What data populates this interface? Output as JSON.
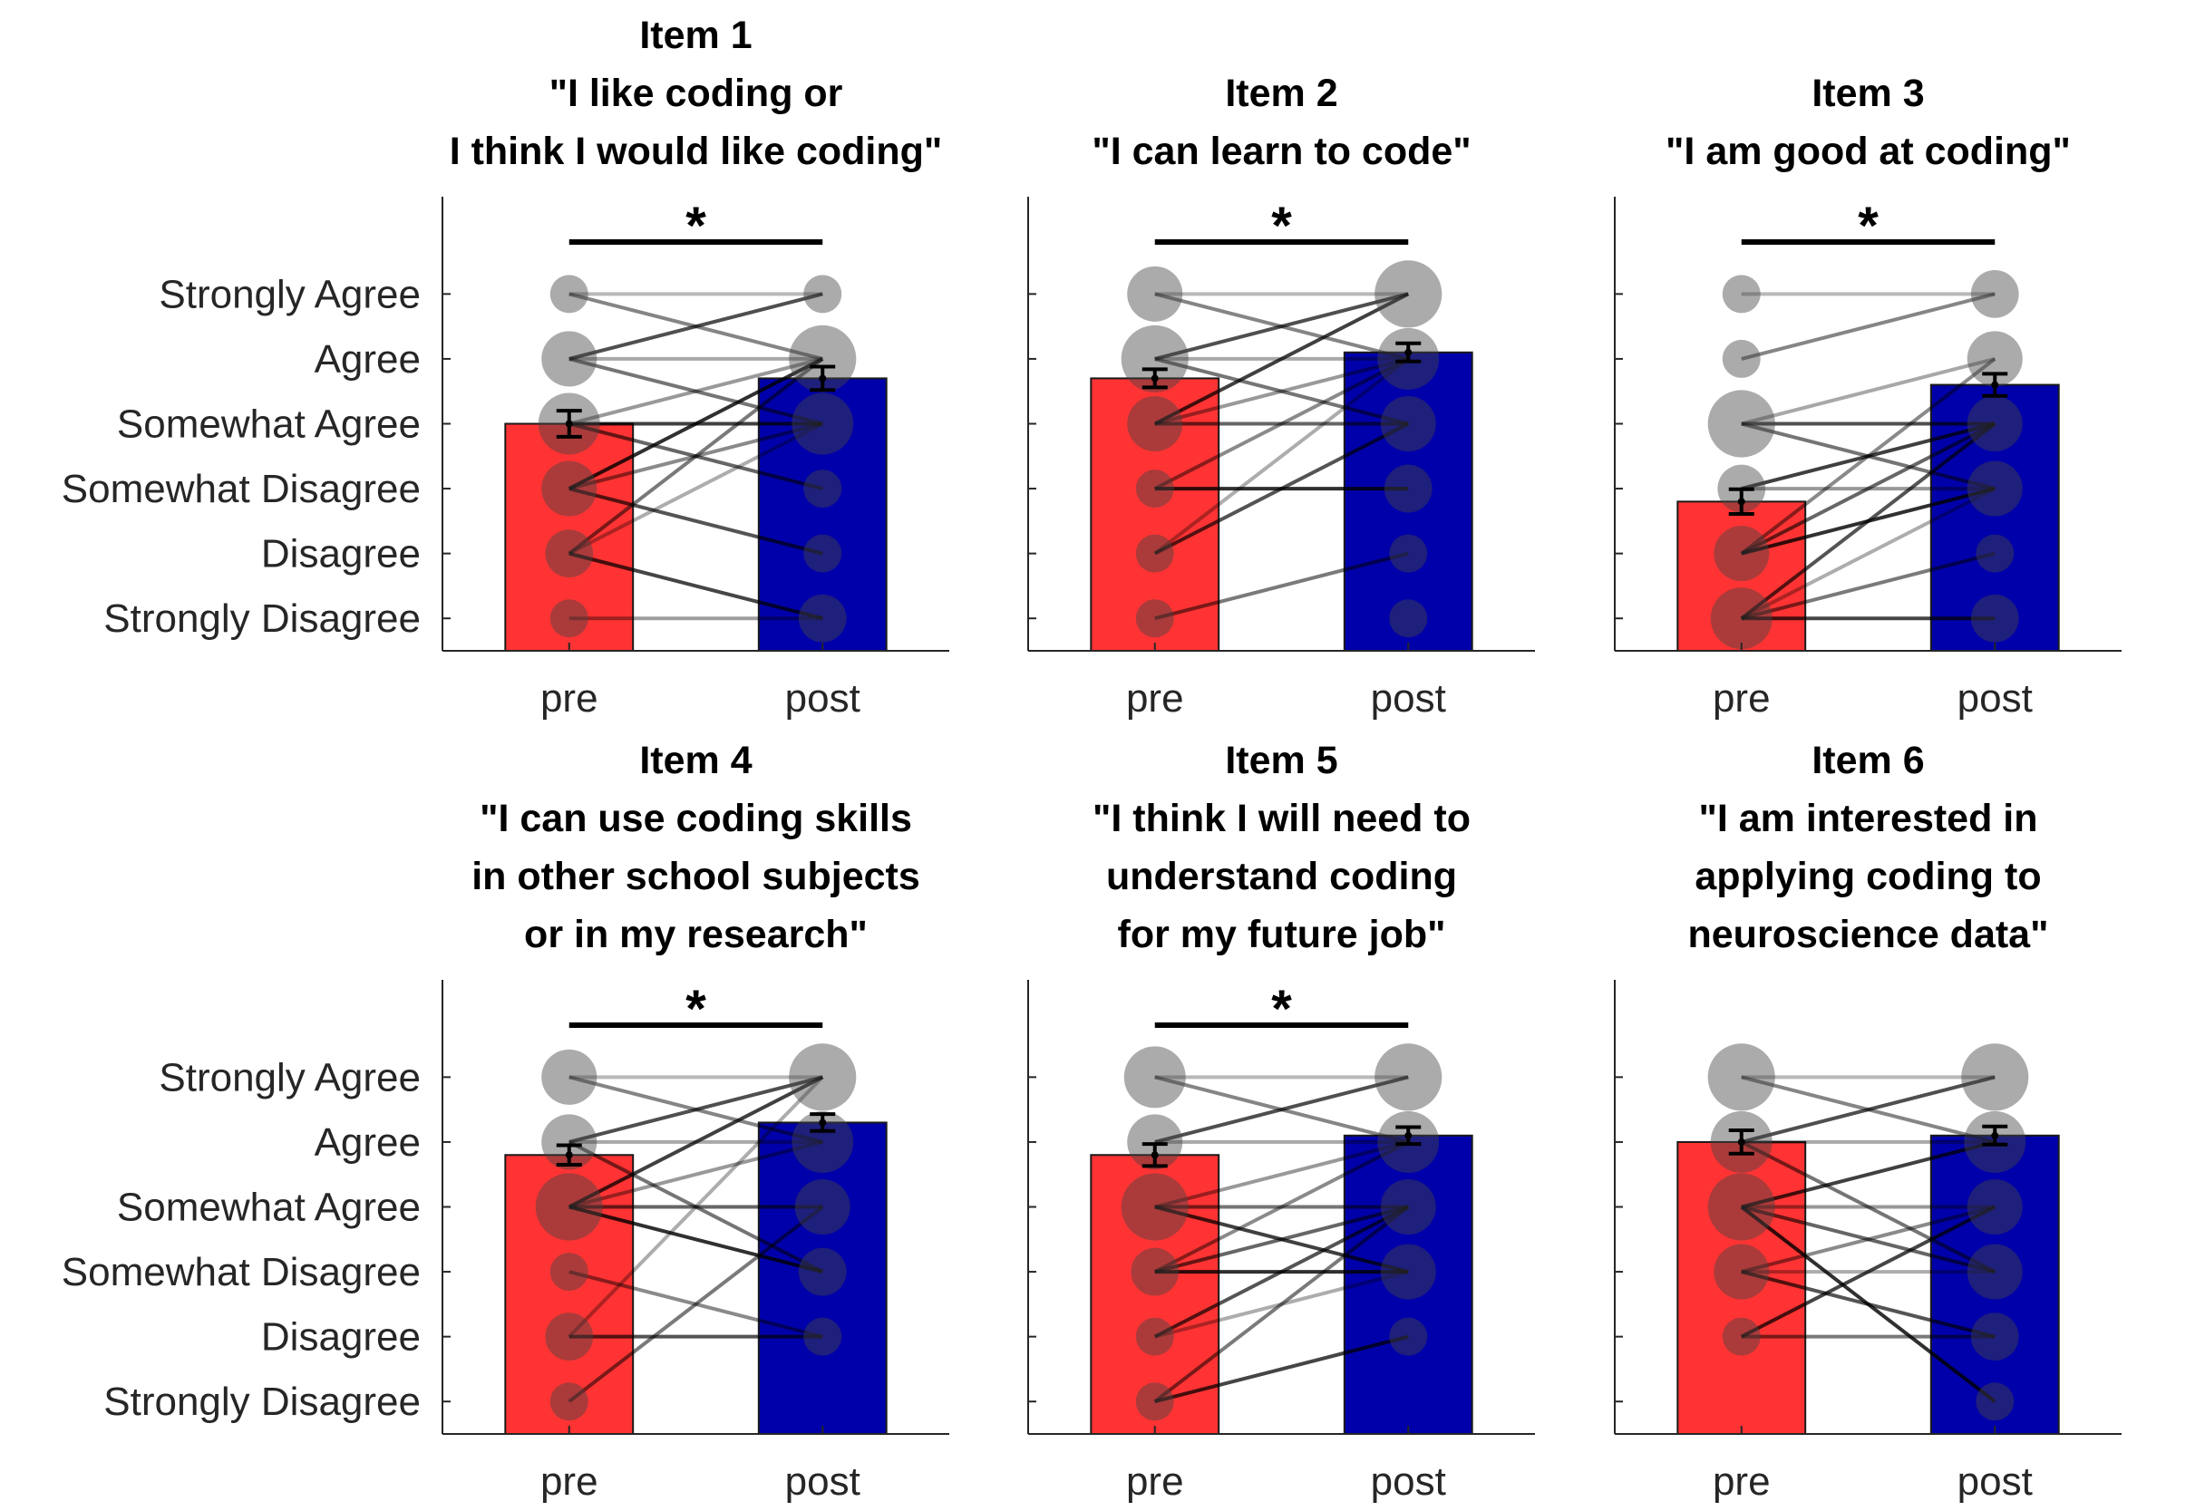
{
  "chart_data": [
    {
      "type": "bar",
      "title": [
        "Item 1",
        "\"I like coding or",
        "I think I would like coding\""
      ],
      "categories": [
        "pre",
        "post"
      ],
      "ytick_labels": [
        "Strongly Disagree",
        "Disagree",
        "Somewhat Disagree",
        "Somewhat Agree",
        "Agree",
        "Strongly Agree"
      ],
      "ylim": [
        0.5,
        7.5
      ],
      "means": [
        4.0,
        4.7
      ],
      "errors": [
        0.2,
        0.18
      ],
      "significance": "*",
      "pre_counts": [
        1,
        2,
        3,
        4,
        3,
        1
      ],
      "post_counts": [
        2,
        1,
        1,
        4,
        5,
        1
      ],
      "pairs": [
        [
          6,
          6
        ],
        [
          6,
          5
        ],
        [
          5,
          6
        ],
        [
          5,
          5
        ],
        [
          5,
          4
        ],
        [
          4,
          4
        ],
        [
          4,
          5
        ],
        [
          4,
          3
        ],
        [
          3,
          5
        ],
        [
          3,
          4
        ],
        [
          3,
          2
        ],
        [
          2,
          4
        ],
        [
          2,
          5
        ],
        [
          2,
          1
        ],
        [
          1,
          1
        ]
      ],
      "colors": {
        "pre": "#ff3333",
        "post": "#0000aa"
      }
    },
    {
      "type": "bar",
      "title": [
        "Item 2",
        "\"I can learn to code\""
      ],
      "categories": [
        "pre",
        "post"
      ],
      "ytick_labels": [
        "Strongly Disagree",
        "Disagree",
        "Somewhat Disagree",
        "Somewhat Agree",
        "Agree",
        "Strongly Agree"
      ],
      "ylim": [
        0.5,
        7.5
      ],
      "means": [
        4.7,
        5.1
      ],
      "errors": [
        0.14,
        0.14
      ],
      "significance": "*",
      "pre_counts": [
        1,
        1,
        1,
        3,
        5,
        3
      ],
      "post_counts": [
        1,
        1,
        2,
        3,
        4,
        5
      ],
      "pairs": [
        [
          6,
          6
        ],
        [
          6,
          5
        ],
        [
          5,
          6
        ],
        [
          5,
          5
        ],
        [
          5,
          4
        ],
        [
          4,
          6
        ],
        [
          4,
          5
        ],
        [
          4,
          4
        ],
        [
          3,
          3
        ],
        [
          3,
          5
        ],
        [
          2,
          4
        ],
        [
          2,
          5
        ],
        [
          1,
          2
        ]
      ],
      "colors": {
        "pre": "#ff3333",
        "post": "#0000aa"
      }
    },
    {
      "type": "bar",
      "title": [
        "Item 3",
        "\"I am good at coding\""
      ],
      "categories": [
        "pre",
        "post"
      ],
      "ytick_labels": [
        "Strongly Disagree",
        "Disagree",
        "Somewhat Disagree",
        "Somewhat Agree",
        "Agree",
        "Strongly Agree"
      ],
      "ylim": [
        0.5,
        7.5
      ],
      "means": [
        2.8,
        4.6
      ],
      "errors": [
        0.19,
        0.17
      ],
      "significance": "*",
      "pre_counts": [
        4,
        3,
        2,
        5,
        1,
        1
      ],
      "post_counts": [
        2,
        1,
        3,
        3,
        3,
        2
      ],
      "pairs": [
        [
          6,
          6
        ],
        [
          5,
          6
        ],
        [
          4,
          4
        ],
        [
          4,
          5
        ],
        [
          4,
          3
        ],
        [
          3,
          4
        ],
        [
          3,
          3
        ],
        [
          2,
          4
        ],
        [
          2,
          3
        ],
        [
          2,
          5
        ],
        [
          1,
          4
        ],
        [
          1,
          3
        ],
        [
          1,
          2
        ],
        [
          1,
          1
        ]
      ],
      "colors": {
        "pre": "#ff3333",
        "post": "#0000aa"
      }
    },
    {
      "type": "bar",
      "title": [
        "Item 4",
        "\"I can use coding skills",
        "in other school subjects",
        "or in my research\""
      ],
      "categories": [
        "pre",
        "post"
      ],
      "ytick_labels": [
        "Strongly Disagree",
        "Disagree",
        "Somewhat Disagree",
        "Somewhat Agree",
        "Agree",
        "Strongly Agree"
      ],
      "ylim": [
        0.5,
        7.5
      ],
      "means": [
        4.8,
        5.3
      ],
      "errors": [
        0.15,
        0.13
      ],
      "significance": "*",
      "pre_counts": [
        1,
        2,
        1,
        5,
        3,
        3
      ],
      "post_counts": [
        0,
        1,
        2,
        3,
        4,
        5
      ],
      "pairs": [
        [
          6,
          6
        ],
        [
          6,
          5
        ],
        [
          5,
          6
        ],
        [
          5,
          5
        ],
        [
          5,
          3
        ],
        [
          4,
          6
        ],
        [
          4,
          5
        ],
        [
          4,
          4
        ],
        [
          4,
          3
        ],
        [
          3,
          2
        ],
        [
          2,
          2
        ],
        [
          2,
          6
        ],
        [
          1,
          4
        ]
      ],
      "colors": {
        "pre": "#ff3333",
        "post": "#0000aa"
      }
    },
    {
      "type": "bar",
      "title": [
        "Item 5",
        "\"I think I will need to",
        "understand coding",
        "for my future job\""
      ],
      "categories": [
        "pre",
        "post"
      ],
      "ytick_labels": [
        "Strongly Disagree",
        "Disagree",
        "Somewhat Disagree",
        "Somewhat Agree",
        "Agree",
        "Strongly Agree"
      ],
      "ylim": [
        0.5,
        7.5
      ],
      "means": [
        4.8,
        5.1
      ],
      "errors": [
        0.17,
        0.13
      ],
      "significance": "*",
      "pre_counts": [
        1,
        1,
        2,
        5,
        3,
        4
      ],
      "post_counts": [
        0,
        1,
        3,
        3,
        4,
        5
      ],
      "pairs": [
        [
          6,
          6
        ],
        [
          6,
          5
        ],
        [
          5,
          6
        ],
        [
          5,
          5
        ],
        [
          4,
          4
        ],
        [
          4,
          3
        ],
        [
          4,
          5
        ],
        [
          3,
          4
        ],
        [
          3,
          3
        ],
        [
          3,
          5
        ],
        [
          2,
          4
        ],
        [
          2,
          3
        ],
        [
          1,
          4
        ],
        [
          1,
          2
        ]
      ],
      "colors": {
        "pre": "#ff3333",
        "post": "#0000aa"
      }
    },
    {
      "type": "bar",
      "title": [
        "Item 6",
        "\"I am interested in",
        "applying coding to",
        "neuroscience data\""
      ],
      "categories": [
        "pre",
        "post"
      ],
      "ytick_labels": [
        "Strongly Disagree",
        "Disagree",
        "Somewhat Disagree",
        "Somewhat Agree",
        "Agree",
        "Strongly Agree"
      ],
      "ylim": [
        0.5,
        7.5
      ],
      "means": [
        5.0,
        5.1
      ],
      "errors": [
        0.18,
        0.14
      ],
      "significance": "",
      "pre_counts": [
        0,
        1,
        3,
        5,
        4,
        5
      ],
      "post_counts": [
        1,
        2,
        3,
        3,
        4,
        5
      ],
      "pairs": [
        [
          6,
          6
        ],
        [
          6,
          5
        ],
        [
          5,
          6
        ],
        [
          5,
          5
        ],
        [
          5,
          3
        ],
        [
          4,
          5
        ],
        [
          4,
          4
        ],
        [
          4,
          3
        ],
        [
          4,
          1
        ],
        [
          3,
          4
        ],
        [
          3,
          2
        ],
        [
          3,
          3
        ],
        [
          2,
          2
        ],
        [
          2,
          4
        ]
      ],
      "colors": {
        "pre": "#ff3333",
        "post": "#0000aa"
      }
    }
  ]
}
